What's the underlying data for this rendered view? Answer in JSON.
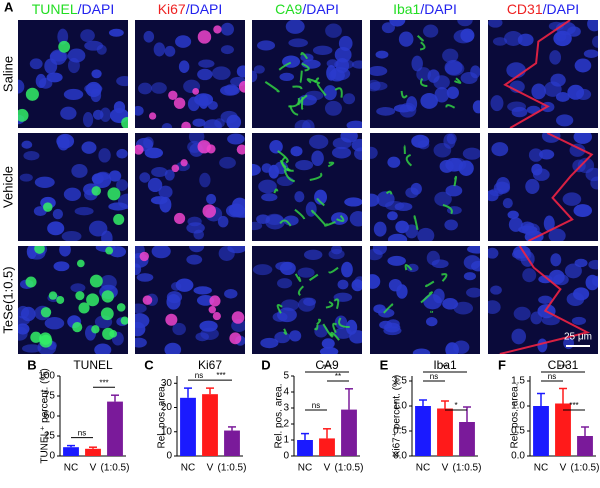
{
  "panel_label": "A",
  "headers": [
    {
      "stain": "TUNEL",
      "counter": "/DAPI",
      "color": "#22dd22"
    },
    {
      "stain": "Ki67",
      "counter": "/DAPI",
      "color": "#ee2222"
    },
    {
      "stain": "CA9",
      "counter": "/DAPI",
      "color": "#22dd22"
    },
    {
      "stain": "Iba1",
      "counter": "/DAPI",
      "color": "#22dd22"
    },
    {
      "stain": "CD31",
      "counter": "/DAPI",
      "color": "#ee2222"
    }
  ],
  "rows": [
    "Saline",
    "Vehicle",
    "TeSe(1:0.5)"
  ],
  "scale_bar": "25 μm",
  "chart_data": [
    {
      "type": "bar",
      "label": "B",
      "title": "TUNEL",
      "y_label": "TUNEL⁺ percent. (%)",
      "categories": [
        "NC",
        "V",
        "(1:0.5)"
      ],
      "colors": [
        "#1a1aff",
        "#ff1a1a",
        "#7a1a9a"
      ],
      "values": [
        11,
        9,
        68
      ],
      "errors": [
        2,
        2,
        8
      ],
      "ylim": [
        0,
        100
      ],
      "yticks": [
        0,
        25,
        50,
        75,
        100
      ],
      "annotations": [
        {
          "text": "ns",
          "between": [
            "NC",
            "V"
          ]
        },
        {
          "text": "***",
          "between": [
            "V",
            "(1:0.5)"
          ]
        }
      ]
    },
    {
      "type": "bar",
      "label": "C",
      "title": "Ki67",
      "y_label": "Rel. pos. area.",
      "categories": [
        "NC",
        "V",
        "(1:0.5)"
      ],
      "colors": [
        "#1a1aff",
        "#ff1a1a",
        "#7a1a9a"
      ],
      "values": [
        24,
        25.5,
        10.5
      ],
      "errors": [
        4,
        2.5,
        1.5
      ],
      "ylim": [
        0,
        33
      ],
      "yticks": [
        0,
        10,
        20,
        30
      ],
      "annotations": [
        {
          "text": "ns",
          "between": [
            "NC",
            "V"
          ]
        },
        {
          "text": "***",
          "between": [
            "V",
            "(1:0.5)"
          ]
        }
      ]
    },
    {
      "type": "bar",
      "label": "D",
      "title": "CA9",
      "y_label": "Rel. pos. area.",
      "categories": [
        "NC",
        "V",
        "(1:0.5)"
      ],
      "colors": [
        "#1a1aff",
        "#ff1a1a",
        "#7a1a9a"
      ],
      "values": [
        1.0,
        1.1,
        2.9
      ],
      "errors": [
        0.4,
        0.6,
        1.3
      ],
      "ylim": [
        0,
        5
      ],
      "yticks": [
        0,
        1,
        2,
        3,
        4,
        5
      ],
      "annotations": [
        {
          "text": "***",
          "between": [
            "NC",
            "(1:0.5)"
          ]
        },
        {
          "text": "**",
          "between": [
            "V",
            "(1:0.5)"
          ]
        },
        {
          "text": "ns",
          "between": [
            "NC",
            "V"
          ]
        }
      ]
    },
    {
      "type": "bar",
      "label": "E",
      "title": "Iba1",
      "y_label": "Ki67⁺ percent. (%)",
      "categories": [
        "NC",
        "V",
        "(1:0.5)"
      ],
      "colors": [
        "#1a1aff",
        "#ff1a1a",
        "#7a1a9a"
      ],
      "values": [
        1.0,
        0.95,
        0.68
      ],
      "errors": [
        0.12,
        0.15,
        0.3
      ],
      "ylim": [
        0,
        1.6
      ],
      "yticks": [
        {
          "value": 0,
          "label": "0.0"
        },
        {
          "value": 0.5,
          "label": "0.5"
        },
        {
          "value": 1,
          "label": "1.0"
        },
        {
          "value": 1.5,
          "label": "1.5"
        }
      ],
      "annotations": [
        {
          "text": "**",
          "between": [
            "NC",
            "(1:0.5)"
          ]
        },
        {
          "text": "ns",
          "between": [
            "NC",
            "V"
          ]
        },
        {
          "text": "*",
          "between": [
            "V",
            "(1:0.5)"
          ]
        }
      ]
    },
    {
      "type": "bar",
      "label": "F",
      "title": "CD31",
      "y_label": "Rel. pos. area.",
      "categories": [
        "NC",
        "V",
        "(1:0.5)"
      ],
      "colors": [
        "#1a1aff",
        "#ff1a1a",
        "#7a1a9a"
      ],
      "values": [
        1.0,
        1.05,
        0.4
      ],
      "errors": [
        0.25,
        0.3,
        0.18
      ],
      "ylim": [
        0,
        1.6
      ],
      "yticks": [
        {
          "value": 0,
          "label": "0.0"
        },
        {
          "value": 0.5,
          "label": "0.5"
        },
        {
          "value": 1,
          "label": "1.0"
        },
        {
          "value": 1.5,
          "label": "1.5"
        }
      ],
      "annotations": [
        {
          "text": "***",
          "between": [
            "NC",
            "(1:0.5)"
          ]
        },
        {
          "text": "ns",
          "between": [
            "NC",
            "V"
          ]
        },
        {
          "text": "***",
          "between": [
            "V",
            "(1:0.5)"
          ]
        }
      ]
    }
  ]
}
